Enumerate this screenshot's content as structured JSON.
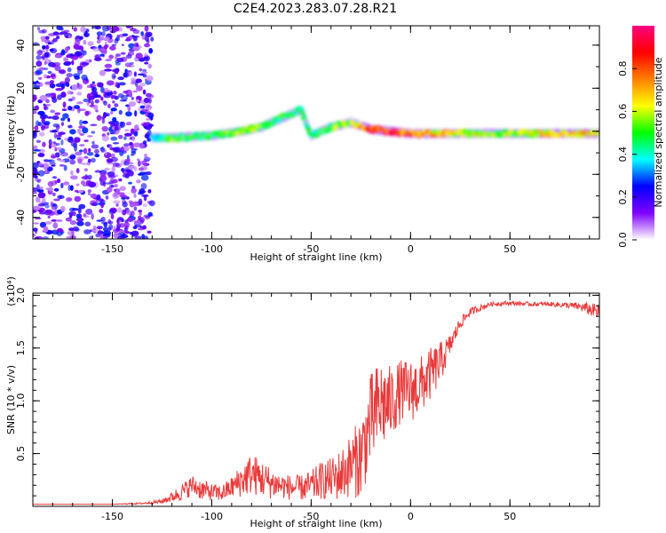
{
  "title": "C2E4.2023.283.07.28.R21",
  "chart_data": [
    {
      "type": "heatmap",
      "xlabel": "Height of straight line (km)",
      "ylabel": "Frequency (Hz)",
      "xlim": [
        -190,
        95
      ],
      "ylim": [
        -50,
        49
      ],
      "xticks": [
        -150,
        -100,
        -50,
        0,
        50
      ],
      "yticks": [
        -40,
        -20,
        0,
        20,
        40
      ],
      "colorbar": {
        "label": "Normalized spectral amplitude",
        "range": [
          0,
          1
        ],
        "ticks": [
          "0.0",
          "0.2",
          "0.4",
          "0.6",
          "0.8"
        ],
        "colors": [
          "#ffffff",
          "#8000ff",
          "#0000ff",
          "#00ffff",
          "#00ff00",
          "#ffff00",
          "#ff8000",
          "#ff0000",
          "#ff0080"
        ]
      },
      "noise_region": {
        "x": [
          -190,
          -130
        ],
        "level": 0.25
      },
      "ridge": [
        {
          "x": -130,
          "freq": -3,
          "amp": 0.35
        },
        {
          "x": -120,
          "freq": -3,
          "amp": 0.55
        },
        {
          "x": -100,
          "freq": -2,
          "amp": 0.5
        },
        {
          "x": -85,
          "freq": 0,
          "amp": 0.6
        },
        {
          "x": -75,
          "freq": 2,
          "amp": 0.55
        },
        {
          "x": -65,
          "freq": 6,
          "amp": 0.5
        },
        {
          "x": -55,
          "freq": 10,
          "amp": 0.5
        },
        {
          "x": -50,
          "freq": -2,
          "amp": 0.45
        },
        {
          "x": -40,
          "freq": 2,
          "amp": 0.55
        },
        {
          "x": -30,
          "freq": 4,
          "amp": 0.6
        },
        {
          "x": -20,
          "freq": 1,
          "amp": 0.85
        },
        {
          "x": -10,
          "freq": 0,
          "amp": 0.9
        },
        {
          "x": 0,
          "freq": -1,
          "amp": 0.85
        },
        {
          "x": 20,
          "freq": -1,
          "amp": 0.65
        },
        {
          "x": 40,
          "freq": -1,
          "amp": 0.6
        },
        {
          "x": 60,
          "freq": -1,
          "amp": 0.65
        },
        {
          "x": 80,
          "freq": -1,
          "amp": 0.75
        },
        {
          "x": 95,
          "freq": -1,
          "amp": 0.7
        }
      ]
    },
    {
      "type": "line",
      "xlabel": "Height of straight line (km)",
      "ylabel": "SNR (10 * v/v)",
      "yscale_label": "(x10⁴)",
      "xlim": [
        -190,
        95
      ],
      "ylim": [
        0,
        2.02
      ],
      "xticks": [
        -150,
        -100,
        -50,
        0,
        50
      ],
      "yticks": [
        0.5,
        1.0,
        1.5,
        2.0
      ],
      "ytick_labels": [
        "0.5",
        "1.0",
        "1.5",
        "2.0"
      ],
      "color": "#e83a3a",
      "series": [
        {
          "x": [
            -190,
            -170,
            -150,
            -135,
            -125,
            -120,
            -115,
            -110,
            -105,
            -100,
            -95,
            -90,
            -85,
            -80,
            -75,
            -70,
            -65,
            -60,
            -55,
            -50,
            -45,
            -40,
            -35,
            -30,
            -25,
            -20,
            -15,
            -10,
            -5,
            0,
            5,
            10,
            15,
            20,
            25,
            30,
            40,
            50,
            60,
            70,
            80,
            85,
            90,
            95
          ],
          "values": [
            0.02,
            0.02,
            0.02,
            0.03,
            0.05,
            0.1,
            0.15,
            0.22,
            0.18,
            0.15,
            0.14,
            0.2,
            0.28,
            0.35,
            0.3,
            0.25,
            0.22,
            0.2,
            0.2,
            0.22,
            0.28,
            0.3,
            0.35,
            0.45,
            0.55,
            0.9,
            1.05,
            1.05,
            1.15,
            1.15,
            1.2,
            1.3,
            1.4,
            1.55,
            1.75,
            1.85,
            1.92,
            1.93,
            1.92,
            1.92,
            1.91,
            1.9,
            1.88,
            1.85
          ],
          "jitter": [
            0.0,
            0.0,
            0.0,
            0.01,
            0.02,
            0.05,
            0.08,
            0.1,
            0.1,
            0.08,
            0.08,
            0.1,
            0.16,
            0.2,
            0.18,
            0.15,
            0.12,
            0.12,
            0.12,
            0.15,
            0.18,
            0.2,
            0.25,
            0.3,
            0.4,
            0.45,
            0.45,
            0.35,
            0.3,
            0.3,
            0.28,
            0.25,
            0.2,
            0.1,
            0.06,
            0.04,
            0.02,
            0.02,
            0.02,
            0.02,
            0.03,
            0.04,
            0.06,
            0.08
          ]
        }
      ]
    }
  ]
}
